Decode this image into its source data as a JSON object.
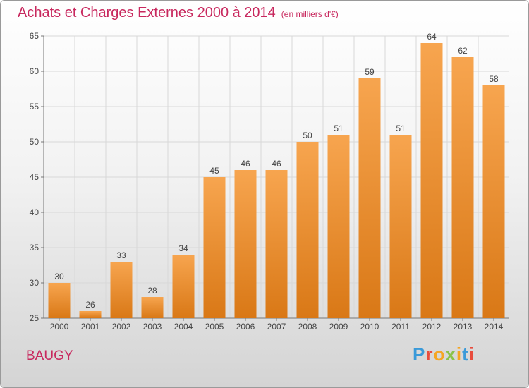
{
  "header": {
    "title": "Achats et Charges Externes 2000 à 2014",
    "unit": "(en milliers d'€)"
  },
  "footer": {
    "city": "BAUGY",
    "logo_text": "Proxiti",
    "logo_colors": [
      "#3a9ad9",
      "#e84c3d",
      "#f5a623",
      "#8bc34a",
      "#f5a623",
      "#3a9ad9",
      "#e84c3d"
    ]
  },
  "colors": {
    "title": "#c8285e",
    "bar_top": "#f7a54f",
    "bar_bottom": "#d97816",
    "grid": "#d8d8d8"
  },
  "chart_data": {
    "type": "bar",
    "categories": [
      "2000",
      "2001",
      "2002",
      "2003",
      "2004",
      "2005",
      "2006",
      "2007",
      "2008",
      "2009",
      "2010",
      "2011",
      "2012",
      "2013",
      "2014"
    ],
    "values": [
      30,
      26,
      33,
      28,
      34,
      45,
      46,
      46,
      50,
      51,
      59,
      51,
      64,
      62,
      58
    ],
    "ylim": [
      25,
      65
    ],
    "yticks": [
      25,
      30,
      35,
      40,
      45,
      50,
      55,
      60,
      65
    ],
    "grid": true
  }
}
